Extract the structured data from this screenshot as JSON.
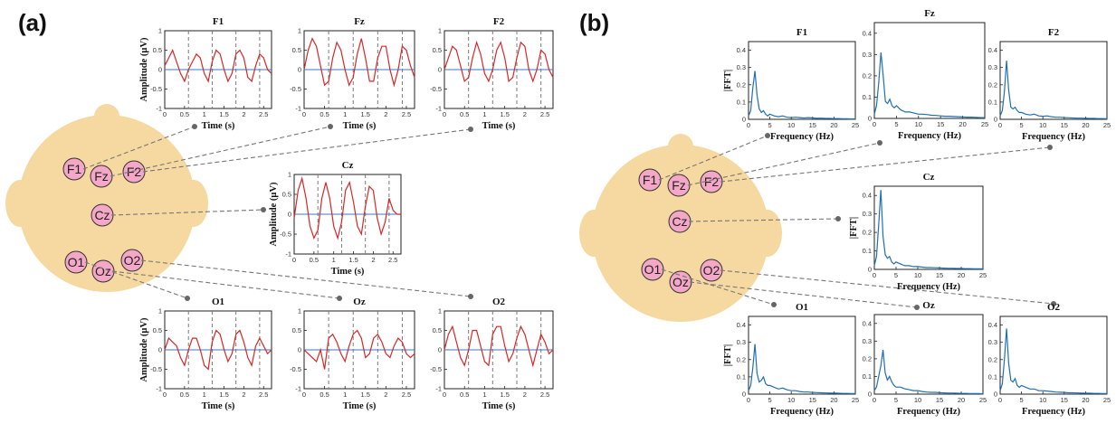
{
  "panel_labels": {
    "a": "(a)",
    "b": "(b)"
  },
  "electrodes": [
    "F1",
    "Fz",
    "F2",
    "Cz",
    "O1",
    "Oz",
    "O2"
  ],
  "colors": {
    "head": "#f6d9a0",
    "electrode_fill": "#f4a7c6",
    "signal": "#d62728",
    "fft": "#1f6fb5",
    "baseline": "#3a78c2",
    "grid": "#7a7a7a",
    "leader": "#777777"
  },
  "chart_data": [
    {
      "type": "line",
      "panel": "a",
      "xlabel": "Time (s)",
      "ylabel": "Amplitude (µV)",
      "xlim": [
        0,
        2.7
      ],
      "ylim": [
        -1,
        1
      ],
      "xticks": [
        "0",
        "0.5",
        "1",
        "1.5",
        "2",
        "2.5"
      ],
      "yticks": [
        "-1",
        "-0.5",
        "0",
        "0.5",
        "1"
      ],
      "vlines_dashed": [
        0.6,
        1.2,
        1.8,
        2.4
      ],
      "series": [
        {
          "name": "F1",
          "x": [
            0,
            0.1,
            0.2,
            0.3,
            0.4,
            0.5,
            0.6,
            0.7,
            0.8,
            0.9,
            1.0,
            1.1,
            1.2,
            1.3,
            1.4,
            1.5,
            1.6,
            1.7,
            1.8,
            1.9,
            2.0,
            2.1,
            2.2,
            2.3,
            2.4,
            2.5,
            2.6,
            2.7
          ],
          "values": [
            0.1,
            0.3,
            0.5,
            0.2,
            -0.1,
            -0.3,
            0.0,
            0.2,
            0.4,
            0.3,
            -0.1,
            -0.3,
            0.2,
            0.5,
            0.4,
            0.0,
            -0.3,
            -0.1,
            0.4,
            0.5,
            0.3,
            -0.2,
            -0.3,
            0.1,
            0.4,
            0.3,
            0.0,
            -0.1
          ]
        },
        {
          "name": "Fz",
          "x": [
            0,
            0.1,
            0.2,
            0.3,
            0.4,
            0.5,
            0.6,
            0.7,
            0.8,
            0.9,
            1.0,
            1.1,
            1.2,
            1.3,
            1.4,
            1.5,
            1.6,
            1.7,
            1.8,
            1.9,
            2.0,
            2.1,
            2.2,
            2.3,
            2.4,
            2.5,
            2.6,
            2.7
          ],
          "values": [
            0.0,
            0.5,
            0.8,
            0.6,
            0.1,
            -0.4,
            -0.3,
            0.3,
            0.7,
            0.5,
            0.0,
            -0.4,
            -0.2,
            0.4,
            0.8,
            0.3,
            -0.3,
            -0.3,
            0.3,
            0.6,
            0.6,
            0.0,
            -0.4,
            0.0,
            0.6,
            0.5,
            0.1,
            -0.2
          ]
        },
        {
          "name": "F2",
          "x": [
            0,
            0.1,
            0.2,
            0.3,
            0.4,
            0.5,
            0.6,
            0.7,
            0.8,
            0.9,
            1.0,
            1.1,
            1.2,
            1.3,
            1.4,
            1.5,
            1.6,
            1.7,
            1.8,
            1.9,
            2.0,
            2.1,
            2.2,
            2.3,
            2.4,
            2.5,
            2.6,
            2.7
          ],
          "values": [
            0.0,
            0.3,
            0.6,
            0.5,
            0.1,
            -0.3,
            -0.2,
            0.3,
            0.7,
            0.4,
            -0.1,
            -0.3,
            0.0,
            0.5,
            0.7,
            0.3,
            -0.3,
            -0.2,
            0.3,
            0.7,
            0.6,
            0.0,
            -0.3,
            0.0,
            0.5,
            0.4,
            0.0,
            -0.2
          ]
        },
        {
          "name": "Cz",
          "x": [
            0,
            0.1,
            0.2,
            0.3,
            0.4,
            0.5,
            0.6,
            0.7,
            0.8,
            0.9,
            1.0,
            1.1,
            1.2,
            1.3,
            1.4,
            1.5,
            1.6,
            1.7,
            1.8,
            1.9,
            2.0,
            2.1,
            2.2,
            2.3,
            2.4,
            2.5,
            2.6,
            2.7
          ],
          "values": [
            -0.1,
            0.6,
            0.9,
            0.4,
            -0.3,
            -0.6,
            -0.4,
            0.4,
            0.8,
            0.4,
            -0.3,
            -0.6,
            -0.2,
            0.6,
            0.8,
            0.3,
            -0.3,
            -0.5,
            0.2,
            0.7,
            0.6,
            -0.1,
            -0.5,
            -0.2,
            0.4,
            0.1,
            0.0,
            0.0
          ]
        },
        {
          "name": "O1",
          "x": [
            0,
            0.1,
            0.2,
            0.3,
            0.4,
            0.5,
            0.6,
            0.7,
            0.8,
            0.9,
            1.0,
            1.1,
            1.2,
            1.3,
            1.4,
            1.5,
            1.6,
            1.7,
            1.8,
            1.9,
            2.0,
            2.1,
            2.2,
            2.3,
            2.4,
            2.5,
            2.6,
            2.7
          ],
          "values": [
            0.0,
            0.3,
            0.2,
            0.1,
            -0.2,
            -0.4,
            0.0,
            0.3,
            0.3,
            0.0,
            -0.4,
            -0.5,
            0.2,
            0.5,
            0.4,
            0.0,
            -0.3,
            -0.1,
            0.4,
            0.5,
            0.2,
            -0.2,
            -0.4,
            0.1,
            0.3,
            0.1,
            -0.1,
            0.0
          ]
        },
        {
          "name": "Oz",
          "x": [
            0,
            0.1,
            0.2,
            0.3,
            0.4,
            0.5,
            0.6,
            0.7,
            0.8,
            0.9,
            1.0,
            1.1,
            1.2,
            1.3,
            1.4,
            1.5,
            1.6,
            1.7,
            1.8,
            1.9,
            2.0,
            2.1,
            2.2,
            2.3,
            2.4,
            2.5,
            2.6,
            2.7
          ],
          "values": [
            0.0,
            -0.1,
            -0.2,
            -0.3,
            0.0,
            -0.5,
            0.3,
            0.4,
            0.2,
            -0.1,
            -0.3,
            0.1,
            0.4,
            0.5,
            0.3,
            -0.2,
            -0.1,
            0.3,
            0.4,
            0.2,
            -0.1,
            -0.2,
            0.1,
            0.3,
            0.2,
            -0.1,
            -0.2,
            -0.1
          ]
        },
        {
          "name": "O2",
          "x": [
            0,
            0.1,
            0.2,
            0.3,
            0.4,
            0.5,
            0.6,
            0.7,
            0.8,
            0.9,
            1.0,
            1.1,
            1.2,
            1.3,
            1.4,
            1.5,
            1.6,
            1.7,
            1.8,
            1.9,
            2.0,
            2.1,
            2.2,
            2.3,
            2.4,
            2.5,
            2.6,
            2.7
          ],
          "values": [
            0.0,
            0.4,
            0.6,
            0.2,
            -0.2,
            -0.4,
            0.0,
            0.5,
            0.5,
            0.1,
            -0.3,
            -0.4,
            0.4,
            0.6,
            0.6,
            0.1,
            -0.3,
            -0.1,
            0.3,
            0.6,
            0.4,
            0.0,
            -0.4,
            0.0,
            0.4,
            0.2,
            -0.1,
            0.0
          ]
        }
      ]
    },
    {
      "type": "line",
      "panel": "b",
      "xlabel": "Frequency (Hz)",
      "ylabel": "|FFT|",
      "xlim": [
        0,
        25
      ],
      "ylim": [
        0,
        0.45
      ],
      "xticks": [
        "0",
        "5",
        "10",
        "15",
        "20",
        "25"
      ],
      "yticks": [
        "0",
        "0.1",
        "0.2",
        "0.3",
        "0.4"
      ],
      "x": [
        0,
        0.5,
        1,
        1.5,
        2,
        2.5,
        3,
        3.5,
        4,
        4.5,
        5,
        6,
        7,
        8,
        9,
        10,
        11,
        12,
        13,
        14,
        15,
        16,
        17,
        18,
        19,
        20,
        21,
        22,
        23,
        24,
        25
      ],
      "series": [
        {
          "name": "F1",
          "values": [
            0.02,
            0.05,
            0.18,
            0.28,
            0.14,
            0.06,
            0.04,
            0.05,
            0.03,
            0.02,
            0.03,
            0.02,
            0.015,
            0.02,
            0.012,
            0.01,
            0.012,
            0.01,
            0.008,
            0.01,
            0.008,
            0.006,
            0.007,
            0.005,
            0.005,
            0.004,
            0.004,
            0.003,
            0.003,
            0.002,
            0.002
          ]
        },
        {
          "name": "Fz",
          "values": [
            0.02,
            0.06,
            0.17,
            0.31,
            0.2,
            0.08,
            0.07,
            0.09,
            0.06,
            0.05,
            0.06,
            0.04,
            0.03,
            0.03,
            0.025,
            0.02,
            0.02,
            0.018,
            0.015,
            0.014,
            0.012,
            0.01,
            0.01,
            0.009,
            0.008,
            0.007,
            0.006,
            0.006,
            0.005,
            0.004,
            0.004
          ]
        },
        {
          "name": "F2",
          "values": [
            0.02,
            0.05,
            0.16,
            0.34,
            0.17,
            0.07,
            0.06,
            0.07,
            0.05,
            0.04,
            0.04,
            0.03,
            0.025,
            0.03,
            0.02,
            0.018,
            0.02,
            0.015,
            0.012,
            0.012,
            0.01,
            0.009,
            0.008,
            0.007,
            0.007,
            0.006,
            0.005,
            0.005,
            0.004,
            0.004,
            0.003
          ]
        },
        {
          "name": "Cz",
          "values": [
            0.02,
            0.07,
            0.24,
            0.43,
            0.18,
            0.08,
            0.06,
            0.07,
            0.04,
            0.03,
            0.04,
            0.03,
            0.02,
            0.02,
            0.015,
            0.015,
            0.012,
            0.01,
            0.01,
            0.009,
            0.008,
            0.007,
            0.006,
            0.006,
            0.005,
            0.005,
            0.004,
            0.004,
            0.003,
            0.003,
            0.003
          ]
        },
        {
          "name": "O1",
          "values": [
            0.02,
            0.05,
            0.15,
            0.29,
            0.12,
            0.07,
            0.08,
            0.1,
            0.06,
            0.05,
            0.05,
            0.04,
            0.03,
            0.035,
            0.025,
            0.02,
            0.02,
            0.015,
            0.012,
            0.012,
            0.01,
            0.009,
            0.008,
            0.007,
            0.006,
            0.006,
            0.005,
            0.004,
            0.004,
            0.003,
            0.003
          ]
        },
        {
          "name": "Oz",
          "values": [
            0.02,
            0.04,
            0.1,
            0.16,
            0.25,
            0.12,
            0.08,
            0.1,
            0.07,
            0.05,
            0.04,
            0.04,
            0.03,
            0.025,
            0.02,
            0.02,
            0.015,
            0.012,
            0.01,
            0.01,
            0.008,
            0.007,
            0.006,
            0.006,
            0.005,
            0.004,
            0.004,
            0.003,
            0.003,
            0.003,
            0.002
          ]
        },
        {
          "name": "O2",
          "values": [
            0.02,
            0.06,
            0.2,
            0.38,
            0.18,
            0.08,
            0.07,
            0.09,
            0.05,
            0.04,
            0.05,
            0.04,
            0.03,
            0.03,
            0.02,
            0.02,
            0.018,
            0.015,
            0.012,
            0.011,
            0.01,
            0.008,
            0.008,
            0.007,
            0.006,
            0.005,
            0.005,
            0.004,
            0.004,
            0.003,
            0.003
          ]
        }
      ]
    }
  ]
}
